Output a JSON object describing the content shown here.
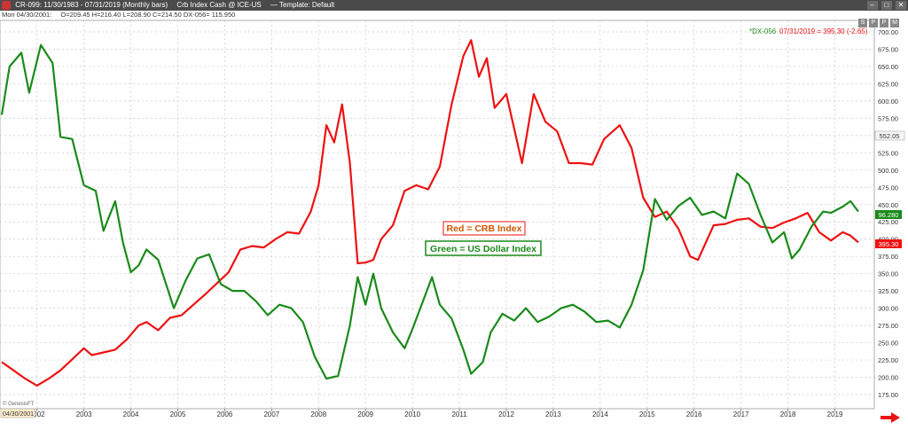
{
  "window": {
    "title_parts": [
      "CR-099:  11/30/1983 - 07/31/2019  (Monthly bars)",
      "Crb Index Cash @ ICE-US",
      "—  Template: Default"
    ],
    "buttons": [
      "–",
      "□",
      "✕"
    ]
  },
  "infobar": {
    "date": "Mon  04/30/2001:",
    "ohlc": "O=209.45  H=216.40  L=208.90  C=214.50  DX-056= 115.950"
  },
  "toolbar_buttons": [
    "S",
    "P",
    "P",
    "M"
  ],
  "colors": {
    "crb": "#ee1111",
    "dxy": "#1a8a1a",
    "grid": "#c8c8c8",
    "panel_border": "#999999"
  },
  "chart_data": {
    "type": "line",
    "x_range": [
      "2001-04",
      "2019-07"
    ],
    "x_ticks": [
      "2002",
      "2003",
      "2004",
      "2005",
      "2006",
      "2007",
      "2008",
      "2009",
      "2010",
      "2011",
      "2012",
      "2013",
      "2014",
      "2015",
      "2016",
      "2017",
      "2018",
      "2019"
    ],
    "x_start_label": "04/30/2001",
    "ylim": [
      175,
      700
    ],
    "y_ticks": [
      "700.00",
      "675.00",
      "650.00",
      "625.00",
      "600.00",
      "575.00",
      "550.00",
      "525.00",
      "500.00",
      "475.00",
      "450.00",
      "425.00",
      "400.00",
      "375.00",
      "350.00",
      "325.00",
      "300.00",
      "275.00",
      "250.00",
      "225.00",
      "200.00",
      "175.00"
    ],
    "right_labels": {
      "crb_last": "395.30",
      "dxy_last": "96.280",
      "other": "552.05"
    },
    "legend_top": {
      "symbol": "*DX-056",
      "detail": "07/31/2019 = 395.30 (-2.65)"
    },
    "annotations": [
      "Red = CRB Index",
      "Green = US Dollar Index"
    ],
    "watermark": "© GenesisFT",
    "series": [
      {
        "name": "CRB Index",
        "color": "#ee1111",
        "points": [
          [
            "2001-04",
            222
          ],
          [
            "2001-07",
            210
          ],
          [
            "2001-10",
            198
          ],
          [
            "2002-01",
            188
          ],
          [
            "2002-04",
            198
          ],
          [
            "2002-07",
            210
          ],
          [
            "2002-10",
            226
          ],
          [
            "2003-01",
            242
          ],
          [
            "2003-03",
            232
          ],
          [
            "2003-06",
            236
          ],
          [
            "2003-09",
            240
          ],
          [
            "2003-12",
            255
          ],
          [
            "2004-03",
            275
          ],
          [
            "2004-05",
            280
          ],
          [
            "2004-08",
            268
          ],
          [
            "2004-11",
            286
          ],
          [
            "2005-02",
            290
          ],
          [
            "2005-05",
            305
          ],
          [
            "2005-08",
            320
          ],
          [
            "2005-11",
            336
          ],
          [
            "2006-02",
            352
          ],
          [
            "2006-05",
            385
          ],
          [
            "2006-08",
            390
          ],
          [
            "2006-11",
            388
          ],
          [
            "2007-02",
            400
          ],
          [
            "2007-05",
            410
          ],
          [
            "2007-08",
            408
          ],
          [
            "2007-11",
            440
          ],
          [
            "2008-01",
            478
          ],
          [
            "2008-03",
            565
          ],
          [
            "2008-05",
            540
          ],
          [
            "2008-07",
            595
          ],
          [
            "2008-09",
            510
          ],
          [
            "2008-11",
            365
          ],
          [
            "2009-01",
            366
          ],
          [
            "2009-03",
            370
          ],
          [
            "2009-05",
            400
          ],
          [
            "2009-08",
            420
          ],
          [
            "2009-11",
            470
          ],
          [
            "2010-02",
            478
          ],
          [
            "2010-05",
            472
          ],
          [
            "2010-08",
            505
          ],
          [
            "2010-11",
            595
          ],
          [
            "2011-02",
            665
          ],
          [
            "2011-04",
            688
          ],
          [
            "2011-06",
            635
          ],
          [
            "2011-08",
            662
          ],
          [
            "2011-10",
            590
          ],
          [
            "2012-01",
            610
          ],
          [
            "2012-05",
            510
          ],
          [
            "2012-08",
            610
          ],
          [
            "2012-11",
            570
          ],
          [
            "2013-02",
            556
          ],
          [
            "2013-05",
            510
          ],
          [
            "2013-08",
            510
          ],
          [
            "2013-11",
            508
          ],
          [
            "2014-02",
            545
          ],
          [
            "2014-06",
            565
          ],
          [
            "2014-09",
            532
          ],
          [
            "2014-12",
            460
          ],
          [
            "2015-03",
            432
          ],
          [
            "2015-06",
            440
          ],
          [
            "2015-09",
            415
          ],
          [
            "2015-12",
            375
          ],
          [
            "2016-02",
            370
          ],
          [
            "2016-06",
            420
          ],
          [
            "2016-09",
            422
          ],
          [
            "2016-12",
            428
          ],
          [
            "2017-03",
            430
          ],
          [
            "2017-06",
            418
          ],
          [
            "2017-09",
            416
          ],
          [
            "2017-12",
            424
          ],
          [
            "2018-03",
            430
          ],
          [
            "2018-06",
            438
          ],
          [
            "2018-09",
            410
          ],
          [
            "2018-12",
            398
          ],
          [
            "2019-03",
            410
          ],
          [
            "2019-05",
            405
          ],
          [
            "2019-07",
            395.3
          ]
        ]
      },
      {
        "name": "US Dollar Index",
        "color": "#1a8a1a",
        "points": [
          [
            "2001-04",
            580
          ],
          [
            "2001-06",
            650
          ],
          [
            "2001-09",
            670
          ],
          [
            "2001-11",
            612
          ],
          [
            "2002-02",
            681
          ],
          [
            "2002-05",
            655
          ],
          [
            "2002-07",
            548
          ],
          [
            "2002-10",
            545
          ],
          [
            "2003-01",
            478
          ],
          [
            "2003-04",
            470
          ],
          [
            "2003-06",
            412
          ],
          [
            "2003-09",
            455
          ],
          [
            "2003-11",
            395
          ],
          [
            "2004-01",
            352
          ],
          [
            "2004-03",
            362
          ],
          [
            "2004-05",
            385
          ],
          [
            "2004-08",
            370
          ],
          [
            "2004-12",
            300
          ],
          [
            "2005-03",
            340
          ],
          [
            "2005-06",
            372
          ],
          [
            "2005-09",
            378
          ],
          [
            "2005-12",
            335
          ],
          [
            "2006-03",
            325
          ],
          [
            "2006-06",
            325
          ],
          [
            "2006-09",
            310
          ],
          [
            "2006-12",
            290
          ],
          [
            "2007-03",
            305
          ],
          [
            "2007-06",
            300
          ],
          [
            "2007-09",
            280
          ],
          [
            "2007-12",
            230
          ],
          [
            "2008-03",
            198
          ],
          [
            "2008-06",
            202
          ],
          [
            "2008-09",
            275
          ],
          [
            "2008-11",
            345
          ],
          [
            "2009-01",
            305
          ],
          [
            "2009-03",
            350
          ],
          [
            "2009-05",
            300
          ],
          [
            "2009-08",
            265
          ],
          [
            "2009-11",
            242
          ],
          [
            "2010-01",
            270
          ],
          [
            "2010-03",
            300
          ],
          [
            "2010-06",
            345
          ],
          [
            "2010-08",
            305
          ],
          [
            "2010-11",
            285
          ],
          [
            "2011-02",
            240
          ],
          [
            "2011-04",
            205
          ],
          [
            "2011-07",
            222
          ],
          [
            "2011-09",
            265
          ],
          [
            "2011-12",
            292
          ],
          [
            "2012-03",
            282
          ],
          [
            "2012-06",
            300
          ],
          [
            "2012-09",
            280
          ],
          [
            "2012-12",
            288
          ],
          [
            "2013-03",
            300
          ],
          [
            "2013-06",
            305
          ],
          [
            "2013-09",
            295
          ],
          [
            "2013-12",
            280
          ],
          [
            "2014-03",
            282
          ],
          [
            "2014-06",
            272
          ],
          [
            "2014-09",
            305
          ],
          [
            "2014-12",
            355
          ],
          [
            "2015-03",
            458
          ],
          [
            "2015-06",
            428
          ],
          [
            "2015-09",
            448
          ],
          [
            "2015-12",
            460
          ],
          [
            "2016-03",
            435
          ],
          [
            "2016-06",
            440
          ],
          [
            "2016-09",
            430
          ],
          [
            "2016-12",
            495
          ],
          [
            "2017-03",
            480
          ],
          [
            "2017-06",
            435
          ],
          [
            "2017-09",
            395
          ],
          [
            "2017-12",
            410
          ],
          [
            "2018-02",
            372
          ],
          [
            "2018-04",
            385
          ],
          [
            "2018-07",
            418
          ],
          [
            "2018-10",
            440
          ],
          [
            "2018-12",
            438
          ],
          [
            "2019-03",
            447
          ],
          [
            "2019-05",
            455
          ],
          [
            "2019-07",
            440
          ]
        ]
      }
    ]
  }
}
